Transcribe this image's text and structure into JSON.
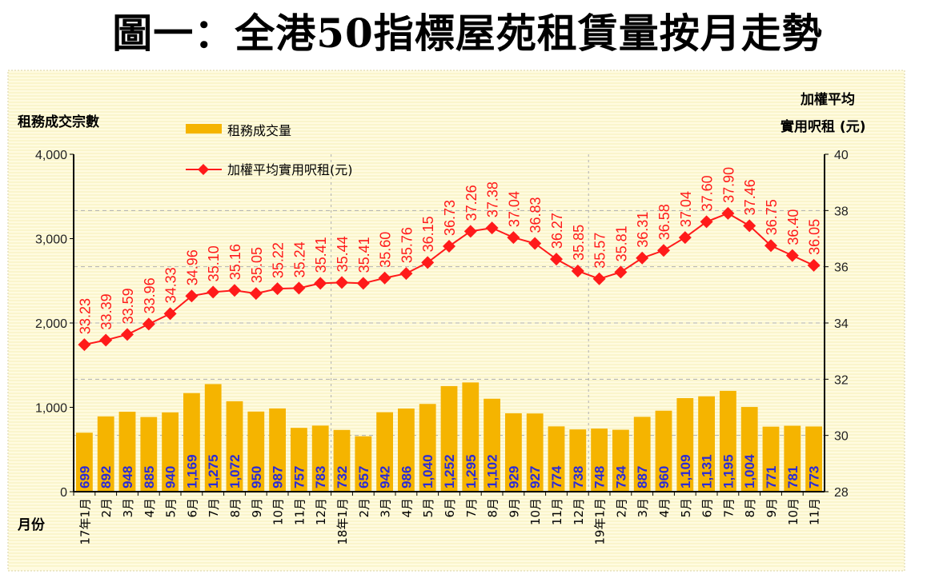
{
  "title": "圖一：全港50指標屋苑租賃量按月走勢",
  "chart_data": {
    "type": "bar+line",
    "title": "圖一：全港50指標屋苑租賃量按月走勢",
    "xlabel": "月份",
    "ylabel": "租務成交宗數",
    "y2label": [
      "加權平均",
      "實用呎租 (元)"
    ],
    "ylim": [
      0,
      4000
    ],
    "y2lim": [
      28,
      40
    ],
    "yticks": [
      "0",
      "1,000",
      "2,000",
      "3,000",
      "4,000"
    ],
    "y2ticks": [
      "28",
      "30",
      "32",
      "34",
      "36",
      "38",
      "40"
    ],
    "legend": {
      "placement": "top-left",
      "bar": "租務成交量",
      "line": "加權平均實用呎租(元)"
    },
    "categories": [
      "17年1月",
      "2月",
      "3月",
      "4月",
      "5月",
      "6月",
      "7月",
      "8月",
      "9月",
      "10月",
      "11月",
      "12月",
      "18年1月",
      "2月",
      "3月",
      "4月",
      "5月",
      "6月",
      "7月",
      "8月",
      "9月",
      "10月",
      "11月",
      "12月",
      "19年1月",
      "2月",
      "3月",
      "4月",
      "5月",
      "6月",
      "7月",
      "8月",
      "9月",
      "10月",
      "11月"
    ],
    "series": [
      {
        "name": "租務成交量",
        "type": "bar",
        "axis": "left",
        "color": "#f5b400",
        "label_color": "#2a2ad8",
        "values": [
          699,
          892,
          948,
          885,
          940,
          1169,
          1275,
          1072,
          950,
          987,
          757,
          783,
          732,
          657,
          942,
          986,
          1040,
          1252,
          1295,
          1102,
          929,
          927,
          774,
          738,
          748,
          734,
          887,
          960,
          1109,
          1131,
          1195,
          1004,
          771,
          781,
          773
        ],
        "labels": [
          "699",
          "892",
          "948",
          "885",
          "940",
          "1,169",
          "1,275",
          "1,072",
          "950",
          "987",
          "757",
          "783",
          "732",
          "657",
          "942",
          "986",
          "1,040",
          "1,252",
          "1,295",
          "1,102",
          "929",
          "927",
          "774",
          "738",
          "748",
          "734",
          "887",
          "960",
          "1,109",
          "1,131",
          "1,195",
          "1,004",
          "771",
          "781",
          "773"
        ]
      },
      {
        "name": "加權平均實用呎租(元)",
        "type": "line",
        "axis": "right",
        "color": "#ff1a1a",
        "values": [
          33.23,
          33.39,
          33.59,
          33.96,
          34.33,
          34.96,
          35.1,
          35.16,
          35.05,
          35.22,
          35.24,
          35.41,
          35.44,
          35.41,
          35.6,
          35.76,
          36.15,
          36.73,
          37.26,
          37.38,
          37.04,
          36.83,
          36.27,
          35.85,
          35.57,
          35.81,
          36.31,
          36.58,
          37.04,
          37.6,
          37.9,
          37.46,
          36.75,
          36.4,
          36.05
        ],
        "labels": [
          "33.23",
          "33.39",
          "33.59",
          "33.96",
          "34.33",
          "34.96",
          "35.10",
          "35.16",
          "35.05",
          "35.22",
          "35.24",
          "35.41",
          "35.44",
          "35.41",
          "35.60",
          "35.76",
          "36.15",
          "36.73",
          "37.26",
          "37.38",
          "37.04",
          "36.83",
          "36.27",
          "35.85",
          "35.57",
          "35.81",
          "36.31",
          "36.58",
          "37.04",
          "37.60",
          "37.90",
          "37.46",
          "36.75",
          "36.40",
          "36.05"
        ]
      }
    ]
  }
}
